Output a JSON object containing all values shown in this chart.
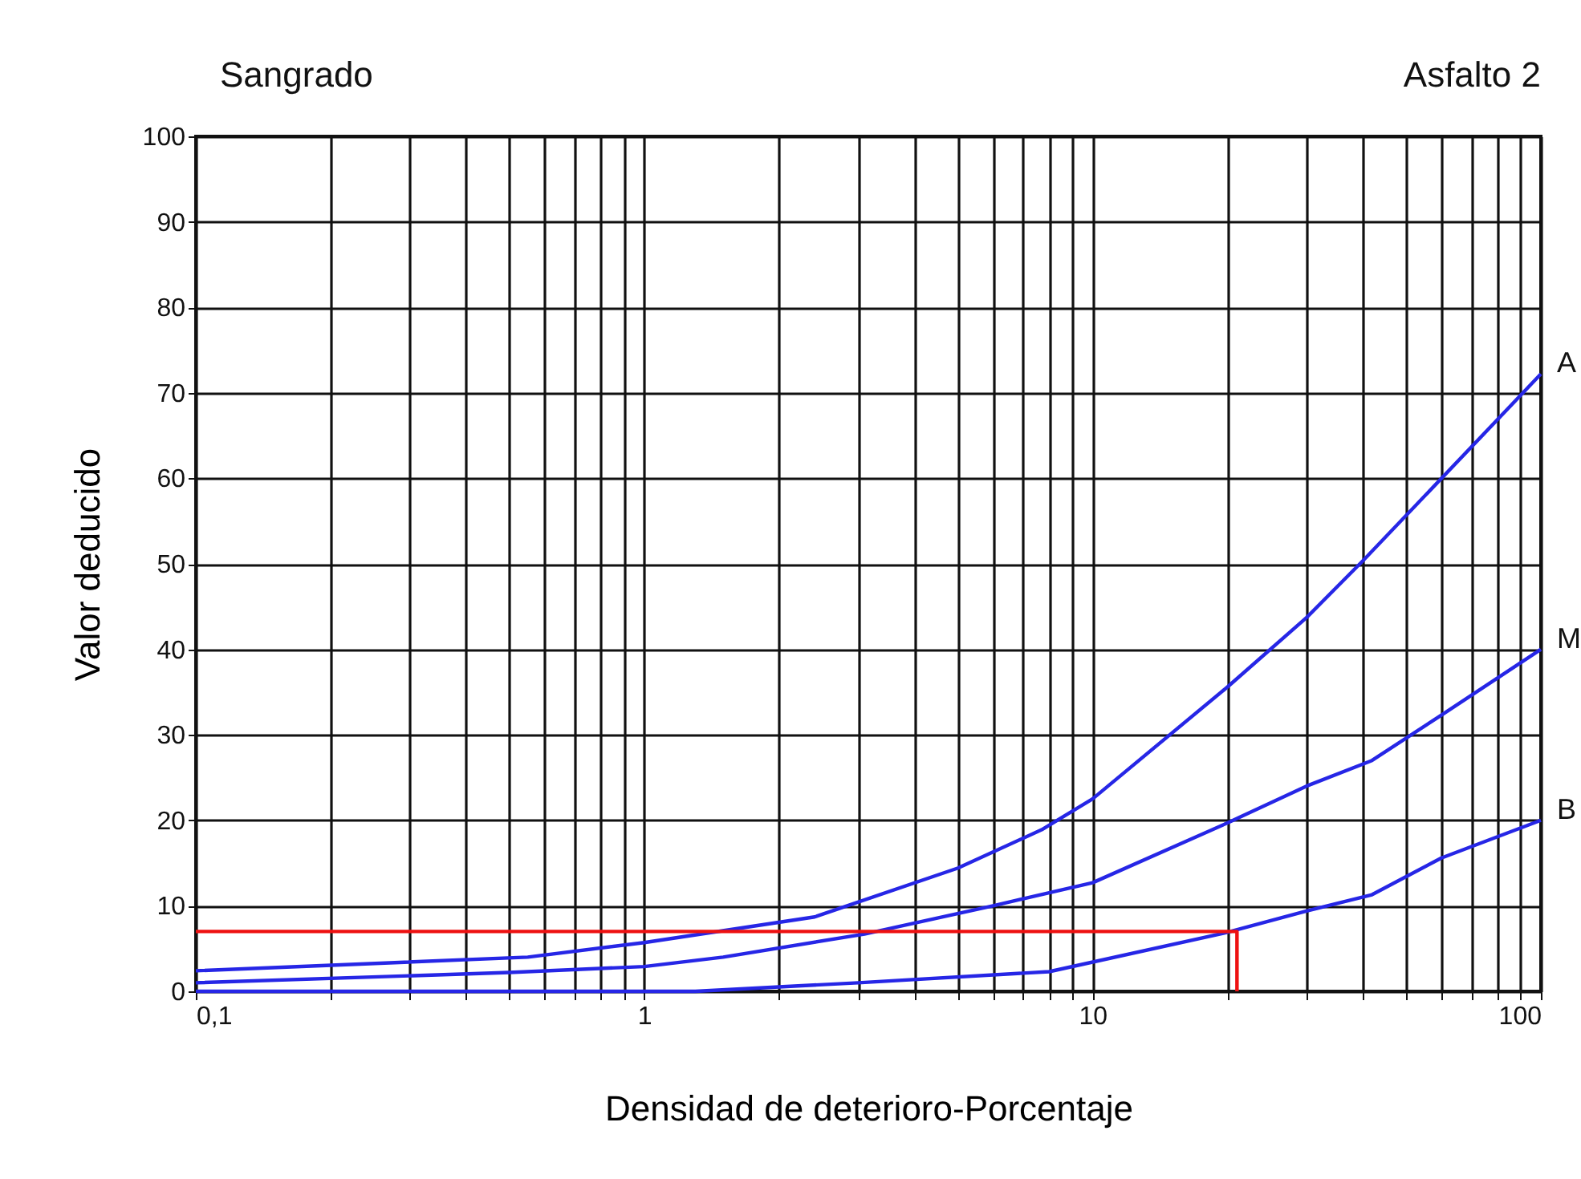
{
  "chart_data": {
    "type": "line",
    "title": "Sangrado",
    "subtitle": "Asfalto 2",
    "xlabel": "Densidad de deterioro-Porcentaje",
    "ylabel": "Valor deducido",
    "log": "x",
    "grid": true,
    "xlim": [
      0.1,
      100
    ],
    "ylim": [
      0,
      100
    ],
    "xticks": [
      {
        "value": 0.1,
        "label": "0,1"
      },
      {
        "value": 0.2,
        "label": null
      },
      {
        "value": 0.3,
        "label": null
      },
      {
        "value": 0.4,
        "label": null
      },
      {
        "value": 0.5,
        "label": null
      },
      {
        "value": 0.6,
        "label": null
      },
      {
        "value": 0.7,
        "label": null
      },
      {
        "value": 0.8,
        "label": null
      },
      {
        "value": 0.9,
        "label": null
      },
      1,
      {
        "value": 2,
        "label": null
      },
      {
        "value": 3,
        "label": null
      },
      {
        "value": 4,
        "label": null
      },
      {
        "value": 5,
        "label": null
      },
      {
        "value": 6,
        "label": null
      },
      {
        "value": 7,
        "label": null
      },
      {
        "value": 8,
        "label": null
      },
      {
        "value": 9,
        "label": null
      },
      10,
      {
        "value": 20,
        "label": null
      },
      {
        "value": 30,
        "label": null
      },
      {
        "value": 40,
        "label": null
      },
      {
        "value": 50,
        "label": null
      },
      {
        "value": 60,
        "label": null
      },
      {
        "value": 70,
        "label": null
      },
      {
        "value": 80,
        "label": null
      },
      {
        "value": 90,
        "label": null
      },
      100
    ],
    "yticks": [
      0,
      10,
      20,
      30,
      40,
      50,
      60,
      70,
      80,
      90,
      100
    ],
    "series": [
      {
        "name": "A",
        "color": "#2626e6",
        "x": [
          0.1,
          0.55,
          1,
          2.4,
          5,
          7.7,
          10,
          20,
          30,
          40,
          100
        ],
        "values": [
          2.4,
          4,
          5.7,
          8.7,
          14.4,
          18.9,
          22.5,
          35.6,
          43.7,
          50.3,
          72.2
        ]
      },
      {
        "name": "M",
        "color": "#2626e6",
        "x": [
          0.1,
          0.5,
          1,
          1.5,
          3.1,
          6,
          10,
          20,
          30,
          42,
          60,
          100
        ],
        "values": [
          1,
          2.2,
          2.9,
          4,
          6.7,
          10,
          12.7,
          19.7,
          24,
          27,
          32.3,
          40
        ]
      },
      {
        "name": "B",
        "color": "#2626e6",
        "x": [
          0.1,
          1.3,
          3,
          8,
          20,
          30,
          42,
          60,
          100
        ],
        "values": [
          0,
          0,
          1,
          2.3,
          6.9,
          9.4,
          11.3,
          15.6,
          20
        ]
      },
      {
        "color": "#ee1111",
        "x": [
          0.1,
          21,
          21
        ],
        "values": [
          7,
          7,
          0
        ]
      }
    ]
  }
}
